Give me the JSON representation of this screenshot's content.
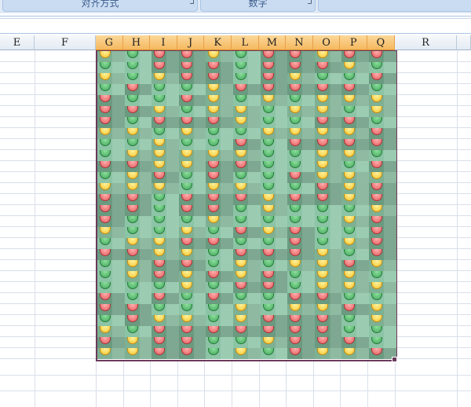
{
  "ribbon": {
    "groups": [
      {
        "label": "对齐方式"
      },
      {
        "label": "数字"
      }
    ]
  },
  "columns": [
    "E",
    "F",
    "G",
    "H",
    "I",
    "J",
    "K",
    "L",
    "M",
    "N",
    "O",
    "P",
    "Q",
    "R"
  ],
  "selected_columns": [
    "G",
    "H",
    "I",
    "J",
    "K",
    "L",
    "M",
    "N",
    "O",
    "P",
    "Q"
  ],
  "colors": {
    "green": "#3fa65a",
    "yellow": "#f5c52a",
    "red": "#e45a5a",
    "selection_border": "#6b3a5a"
  },
  "icon_set": "traffic-light-half-circles",
  "icon_grid": [
    "ygrrygrryrr",
    "ggrrrgrrryg",
    "ygyrrgryggr",
    "grggyrrrrrg",
    "rggrygygyyy",
    "rrygyygyygy",
    "rgrrryggrrg",
    "yygyggyyyyr",
    "ggyggrgrrrr",
    "gyyyyyggyyg",
    "rryyrrggygr",
    "gyrgrggryyy",
    "yyygyyggryr",
    "rrgrrryrryr",
    "rrgrrgygggy",
    "rgggyggggyr",
    "yggygryrggr",
    "gyyrrggrgyr",
    "rryygrrrygr",
    "gyrrgygyyry",
    "gyryryrgyyg",
    "gggygrrgyyy",
    "rgrgrggrrgg",
    "rrgggygyyry",
    "gryygyrrrgy",
    "ygrrrrrrrgg",
    "ryrrggyrrrg",
    "yyrrgygryyr"
  ]
}
